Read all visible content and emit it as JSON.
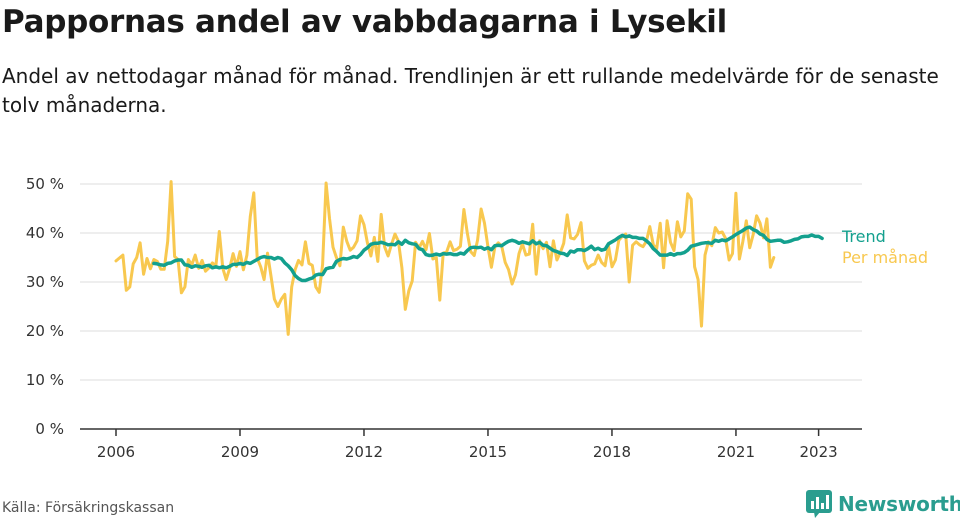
{
  "title": "Pappornas andel av vabbdagarna i Lysekil",
  "subtitle": "Andel av nettodagar månad för månad. Trendlinjen är ett rullande medelvärde för de senaste tolv månaderna.",
  "source": "Källa: Försäkringskassan",
  "brand": "Newsworthy",
  "colors": {
    "trend": "#13a08e",
    "monthly": "#f8c84f",
    "grid": "#dddddd",
    "axis": "#333333",
    "brand": "#2a9d8f"
  },
  "chart_data": {
    "type": "line",
    "x_start": "2006-01",
    "x_ticks": [
      2006,
      2009,
      2012,
      2015,
      2018,
      2021,
      2023
    ],
    "x_tick_labels": [
      "2006",
      "2009",
      "2012",
      "2015",
      "2018",
      "2021",
      "2023"
    ],
    "ylim": [
      0,
      50
    ],
    "y_ticks": [
      0,
      10,
      20,
      30,
      40,
      50
    ],
    "y_tick_labels": [
      "0 %",
      "10 %",
      "20 %",
      "30 %",
      "40 %",
      "50 %"
    ],
    "grid": true,
    "legend_position": "right end of lines",
    "series": [
      {
        "name": "Per månad",
        "key": "monthly",
        "start": "2006-01",
        "values": [
          34.3,
          34.9,
          35.5,
          28.3,
          29.0,
          33.7,
          35.0,
          38.0,
          31.6,
          34.8,
          32.7,
          34.6,
          34.2,
          32.6,
          32.6,
          38.3,
          50.5,
          35.2,
          34.6,
          27.8,
          29.0,
          34.6,
          33.5,
          35.5,
          32.8,
          34.4,
          32.2,
          32.9,
          33.9,
          33.3,
          40.3,
          32.8,
          30.5,
          32.8,
          35.8,
          33.2,
          36.2,
          32.5,
          35.5,
          43.4,
          48.2,
          34.9,
          33.1,
          30.5,
          35.9,
          31.2,
          26.5,
          25.0,
          26.5,
          27.5,
          19.3,
          29.0,
          32.5,
          34.4,
          33.5,
          38.2,
          33.8,
          33.4,
          29.0,
          27.9,
          33.6,
          50.2,
          43.0,
          37.1,
          35.0,
          33.3,
          41.2,
          38.3,
          36.5,
          37.1,
          38.4,
          43.5,
          41.7,
          38.0,
          35.3,
          39.1,
          34.2,
          43.8,
          37.2,
          35.3,
          37.7,
          39.8,
          38.3,
          32.9,
          24.4,
          28.2,
          30.2,
          38.1,
          37.0,
          38.3,
          36.6,
          39.9,
          34.7,
          35.0,
          26.3,
          35.9,
          36.1,
          38.2,
          36.4,
          36.7,
          37.3,
          44.8,
          40.0,
          36.2,
          35.4,
          38.6,
          44.9,
          42.0,
          37.1,
          33.0,
          37.2,
          38.0,
          37.3,
          34.0,
          32.5,
          29.6,
          31.5,
          35.8,
          37.8,
          35.5,
          35.7,
          41.8,
          31.6,
          38.4,
          36.8,
          38.1,
          33.1,
          38.4,
          34.5,
          36.0,
          37.9,
          43.7,
          39.0,
          38.8,
          39.7,
          42.1,
          34.3,
          32.8,
          33.4,
          33.7,
          35.5,
          34.0,
          33.3,
          37.4,
          33.1,
          34.5,
          38.5,
          39.3,
          39.8,
          30.0,
          37.5,
          38.2,
          37.6,
          37.2,
          38.3,
          41.3,
          37.6,
          36.8,
          42.0,
          32.9,
          42.5,
          38.1,
          36.4,
          42.3,
          39.2,
          40.4,
          48.0,
          46.9,
          33.1,
          30.5,
          21.0,
          35.5,
          38.2,
          37.4,
          41.1,
          40.0,
          40.2,
          38.9,
          34.5,
          35.8,
          48.1,
          34.7,
          38.2,
          42.5,
          37.0,
          39.7,
          43.5,
          42.0,
          39.0,
          42.9,
          33.0,
          35.0
        ]
      },
      {
        "name": "Trend",
        "key": "trend",
        "start": "2006-12",
        "values": [
          33.8,
          33.7,
          33.5,
          33.4,
          33.8,
          33.9,
          34.3,
          34.5,
          34.5,
          33.5,
          33.4,
          33.0,
          33.3,
          33.2,
          33.0,
          33.3,
          33.4,
          32.9,
          33.1,
          32.9,
          33.1,
          32.9,
          33.2,
          33.6,
          33.6,
          33.8,
          33.6,
          34.0,
          33.8,
          34.2,
          34.6,
          35.0,
          35.2,
          35.0,
          35.0,
          34.7,
          35.0,
          34.8,
          33.9,
          33.3,
          32.5,
          31.3,
          30.7,
          30.3,
          30.3,
          30.6,
          30.8,
          31.4,
          31.6,
          31.5,
          32.7,
          32.9,
          33.0,
          34.2,
          34.6,
          34.8,
          34.7,
          34.9,
          35.2,
          35.0,
          35.6,
          36.5,
          37.0,
          37.7,
          37.9,
          37.9,
          38.1,
          37.9,
          37.6,
          37.7,
          37.6,
          38.2,
          37.7,
          38.5,
          38.0,
          37.8,
          37.7,
          36.8,
          36.6,
          35.6,
          35.4,
          35.5,
          35.7,
          35.5,
          35.8,
          35.7,
          35.8,
          35.6,
          35.6,
          35.9,
          35.7,
          36.4,
          37.0,
          37.1,
          37.0,
          37.1,
          36.7,
          37.0,
          36.6,
          37.4,
          37.5,
          37.4,
          37.9,
          38.3,
          38.5,
          38.3,
          37.9,
          38.2,
          38.0,
          37.8,
          38.4,
          37.8,
          38.1,
          37.5,
          37.4,
          36.9,
          36.4,
          36.2,
          35.9,
          35.8,
          35.4,
          36.3,
          36.1,
          36.6,
          36.6,
          36.4,
          36.8,
          37.3,
          36.6,
          36.9,
          36.5,
          36.7,
          37.8,
          38.2,
          38.6,
          39.1,
          39.5,
          39.2,
          39.4,
          39.1,
          39.1,
          38.9,
          38.9,
          38.4,
          37.8,
          36.8,
          36.2,
          35.5,
          35.5,
          35.5,
          35.8,
          35.5,
          35.8,
          35.8,
          36.0,
          36.5,
          37.3,
          37.5,
          37.7,
          37.9,
          38.0,
          38.0,
          37.9,
          38.5,
          38.3,
          38.6,
          38.4,
          38.8,
          39.2,
          39.7,
          40.1,
          40.5,
          41.0,
          41.2,
          40.7,
          40.4,
          39.8,
          39.5,
          38.7,
          38.3,
          38.4,
          38.5,
          38.5,
          38.1,
          38.2,
          38.4,
          38.7,
          38.8,
          39.2,
          39.3,
          39.3,
          39.6,
          39.3,
          39.3,
          38.9
        ]
      }
    ]
  }
}
